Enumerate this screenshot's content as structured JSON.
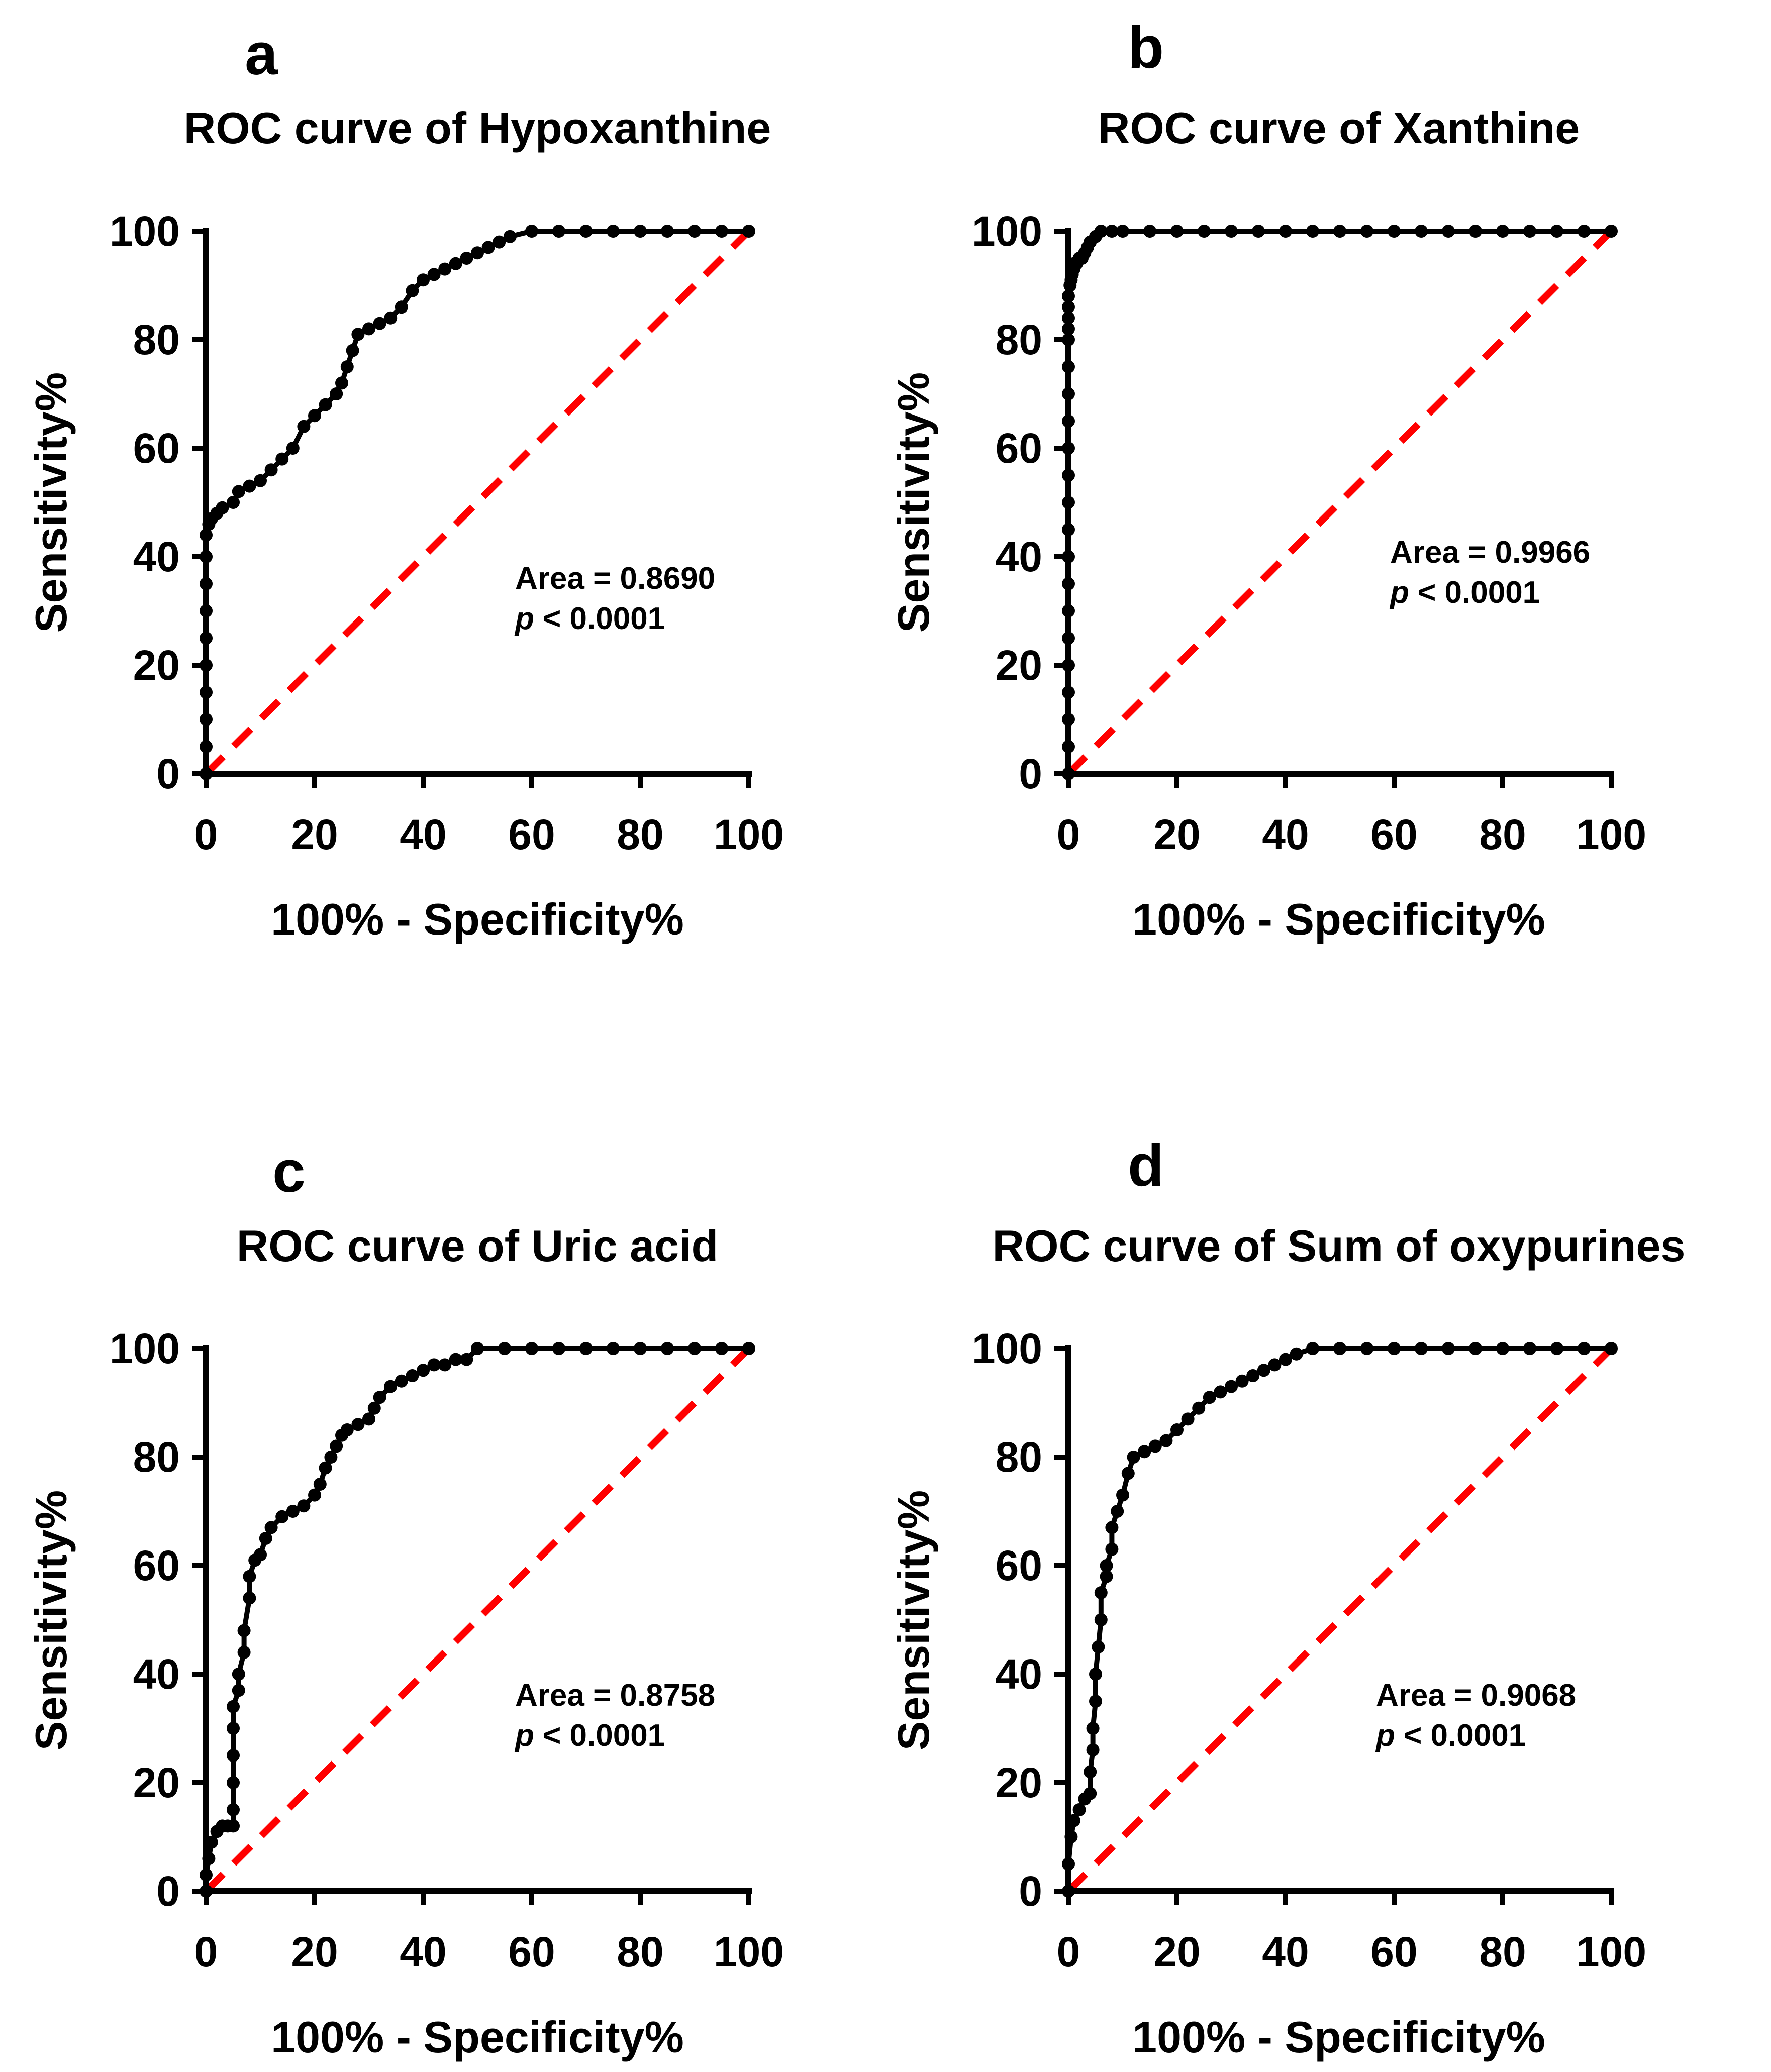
{
  "colors": {
    "curve": "#000000",
    "reference_line": "#ff0000",
    "axis": "#000000"
  },
  "chart_data": [
    {
      "panel_letter": "a",
      "type": "line",
      "title": "ROC curve of Hypoxanthine",
      "xlabel": "100% - Specificity%",
      "ylabel": "Sensitivity%",
      "xlim": [
        0,
        100
      ],
      "ylim": [
        0,
        100
      ],
      "xticks": [
        "0",
        "20",
        "40",
        "60",
        "80",
        "100"
      ],
      "yticks": [
        "0",
        "20",
        "40",
        "60",
        "80",
        "100"
      ],
      "area_text": "Area = 0.8690",
      "p_symbol": "p",
      "p_text": " < 0.0001",
      "series": [
        {
          "name": "ROC",
          "marker": "circle",
          "x": [
            0,
            0,
            0,
            0,
            0,
            0,
            0,
            0,
            0,
            0,
            0.5,
            1,
            2,
            3,
            5,
            6,
            8,
            10,
            12,
            14,
            16,
            18,
            20,
            22,
            24,
            25,
            26,
            27,
            28,
            30,
            32,
            34,
            36,
            38,
            40,
            42,
            44,
            46,
            48,
            50,
            52,
            54,
            56,
            60,
            65,
            70,
            75,
            80,
            85,
            90,
            95,
            100
          ],
          "y": [
            0,
            5,
            10,
            15,
            20,
            25,
            30,
            35,
            40,
            44,
            46,
            47,
            48,
            49,
            50,
            52,
            53,
            54,
            56,
            58,
            60,
            64,
            66,
            68,
            70,
            72,
            75,
            78,
            81,
            82,
            83,
            84,
            86,
            89,
            91,
            92,
            93,
            94,
            95,
            96,
            97,
            98,
            99,
            100,
            100,
            100,
            100,
            100,
            100,
            100,
            100,
            100
          ]
        },
        {
          "name": "Reference",
          "style": "dashed",
          "x": [
            0,
            100
          ],
          "y": [
            0,
            100
          ]
        }
      ]
    },
    {
      "panel_letter": "b",
      "type": "line",
      "title": "ROC curve of Xanthine",
      "xlabel": "100% - Specificity%",
      "ylabel": "Sensitivity%",
      "xlim": [
        0,
        100
      ],
      "ylim": [
        0,
        100
      ],
      "xticks": [
        "0",
        "20",
        "40",
        "60",
        "80",
        "100"
      ],
      "yticks": [
        "0",
        "20",
        "40",
        "60",
        "80",
        "100"
      ],
      "area_text": "Area = 0.9966",
      "p_symbol": "p",
      "p_text": " < 0.0001",
      "series": [
        {
          "name": "ROC",
          "marker": "circle",
          "x": [
            0,
            0,
            0,
            0,
            0,
            0,
            0,
            0,
            0,
            0,
            0,
            0,
            0,
            0,
            0,
            0,
            0,
            0,
            0,
            0,
            0,
            0.3,
            0.5,
            0.7,
            1,
            1,
            1.5,
            2,
            2.5,
            3,
            3.5,
            4,
            5,
            6,
            8,
            10,
            15,
            20,
            25,
            30,
            35,
            40,
            45,
            50,
            55,
            60,
            65,
            70,
            75,
            80,
            85,
            90,
            95,
            100
          ],
          "y": [
            0,
            5,
            10,
            15,
            20,
            25,
            30,
            35,
            40,
            45,
            50,
            55,
            60,
            65,
            70,
            75,
            80,
            82,
            84,
            86,
            88,
            90,
            91,
            92,
            93,
            94,
            94,
            95,
            95,
            96,
            97,
            98,
            99,
            100,
            100,
            100,
            100,
            100,
            100,
            100,
            100,
            100,
            100,
            100,
            100,
            100,
            100,
            100,
            100,
            100,
            100,
            100,
            100,
            100
          ]
        },
        {
          "name": "Reference",
          "style": "dashed",
          "x": [
            0,
            100
          ],
          "y": [
            0,
            100
          ]
        }
      ]
    },
    {
      "panel_letter": "c",
      "type": "line",
      "title": "ROC curve of Uric acid",
      "xlabel": "100% - Specificity%",
      "ylabel": "Sensitivity%",
      "xlim": [
        0,
        100
      ],
      "ylim": [
        0,
        100
      ],
      "xticks": [
        "0",
        "20",
        "40",
        "60",
        "80",
        "100"
      ],
      "yticks": [
        "0",
        "20",
        "40",
        "60",
        "80",
        "100"
      ],
      "area_text": "Area = 0.8758",
      "p_symbol": "p",
      "p_text": " < 0.0001",
      "series": [
        {
          "name": "ROC",
          "marker": "circle",
          "x": [
            0,
            0,
            0.5,
            1,
            2,
            3,
            4,
            5,
            5,
            5,
            5,
            5,
            5,
            6,
            6,
            7,
            7,
            8,
            8,
            9,
            10,
            11,
            12,
            14,
            16,
            18,
            20,
            21,
            22,
            23,
            24,
            25,
            26,
            28,
            30,
            31,
            32,
            34,
            36,
            38,
            40,
            42,
            44,
            46,
            48,
            50,
            55,
            60,
            65,
            70,
            75,
            80,
            85,
            90,
            95,
            100
          ],
          "y": [
            0,
            3,
            6,
            9,
            11,
            12,
            12,
            12,
            15,
            20,
            25,
            30,
            34,
            37,
            40,
            44,
            48,
            54,
            58,
            61,
            62,
            65,
            67,
            69,
            70,
            71,
            73,
            75,
            78,
            80,
            82,
            84,
            85,
            86,
            87,
            89,
            91,
            93,
            94,
            95,
            96,
            97,
            97,
            98,
            98,
            100,
            100,
            100,
            100,
            100,
            100,
            100,
            100,
            100,
            100,
            100
          ]
        },
        {
          "name": "Reference",
          "style": "dashed",
          "x": [
            0,
            100
          ],
          "y": [
            0,
            100
          ]
        }
      ]
    },
    {
      "panel_letter": "d",
      "type": "line",
      "title": "ROC curve of Sum of oxypurines",
      "xlabel": "100% - Specificity%",
      "ylabel": "Sensitivity%",
      "xlim": [
        0,
        100
      ],
      "ylim": [
        0,
        100
      ],
      "xticks": [
        "0",
        "20",
        "40",
        "60",
        "80",
        "100"
      ],
      "yticks": [
        "0",
        "20",
        "40",
        "60",
        "80",
        "100"
      ],
      "area_text": "Area = 0.9068",
      "p_symbol": "p",
      "p_text": " < 0.0001",
      "series": [
        {
          "name": "ROC",
          "marker": "circle",
          "x": [
            0,
            0,
            0.5,
            1,
            2,
            3,
            4,
            4,
            4.5,
            4.5,
            5,
            5,
            5.5,
            6,
            6,
            7,
            7,
            8,
            8,
            9,
            10,
            11,
            12,
            14,
            16,
            18,
            20,
            22,
            24,
            26,
            28,
            30,
            32,
            34,
            36,
            38,
            40,
            42,
            45,
            50,
            55,
            60,
            65,
            70,
            75,
            80,
            85,
            90,
            95,
            100
          ],
          "y": [
            0,
            5,
            10,
            13,
            15,
            17,
            18,
            22,
            26,
            30,
            35,
            40,
            45,
            50,
            55,
            58,
            60,
            63,
            67,
            70,
            73,
            77,
            80,
            81,
            82,
            83,
            85,
            87,
            89,
            91,
            92,
            93,
            94,
            95,
            96,
            97,
            98,
            99,
            100,
            100,
            100,
            100,
            100,
            100,
            100,
            100,
            100,
            100,
            100,
            100
          ]
        },
        {
          "name": "Reference",
          "style": "dashed",
          "x": [
            0,
            100
          ],
          "y": [
            0,
            100
          ]
        }
      ]
    }
  ]
}
